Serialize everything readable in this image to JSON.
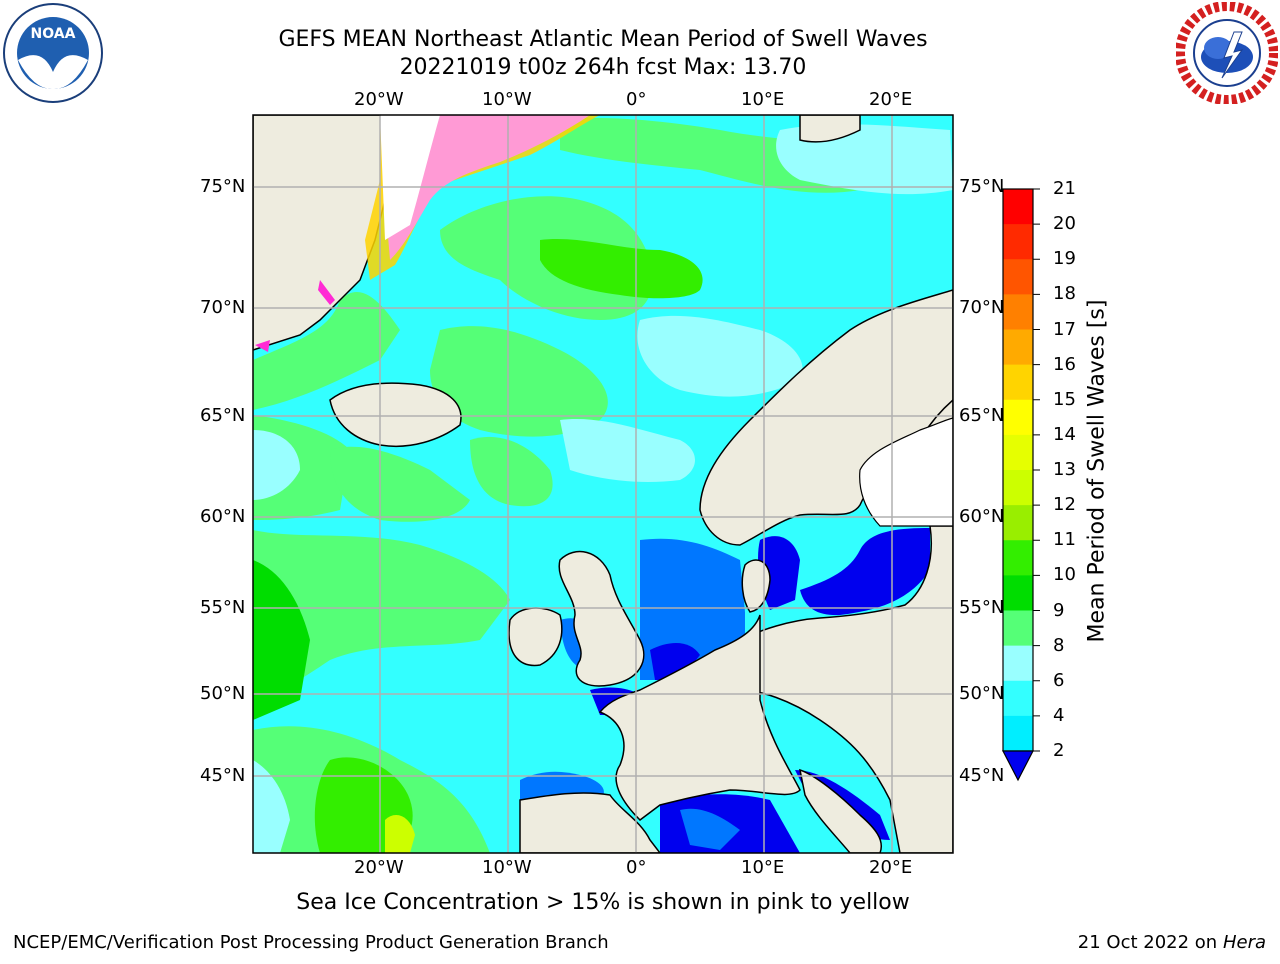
{
  "title": {
    "line1": "GEFS MEAN Northeast Atlantic Mean Period of Swell Waves",
    "line2": "20221019 t00z 264h fcst   Max: 13.70"
  },
  "map": {
    "lon_labels": [
      "20°W",
      "10°W",
      "0°",
      "10°E",
      "20°E"
    ],
    "lat_labels": [
      "75°N",
      "70°N",
      "65°N",
      "60°N",
      "55°N",
      "50°N",
      "45°N"
    ],
    "land_color": "#eeecdf",
    "ocean_base_color": "#33ffff"
  },
  "colorbar": {
    "title": "Mean Period of Swell Waves [s]",
    "tick_labels": [
      "21",
      "20",
      "19",
      "18",
      "17",
      "16",
      "15",
      "14",
      "13",
      "12",
      "11",
      "10",
      "9",
      "8",
      "6",
      "4",
      "2"
    ],
    "colors": [
      "#ff0000",
      "#ff2a00",
      "#ff5500",
      "#ff8000",
      "#ffaa00",
      "#ffd400",
      "#ffff00",
      "#e6ff00",
      "#ccff00",
      "#99ee00",
      "#33ee00",
      "#00dd00",
      "#55ff77",
      "#99ffff",
      "#33ffff",
      "#00eeff",
      "#0077ff",
      "#0000ee"
    ]
  },
  "note": "Sea Ice Concentration > 15% is shown in pink to yellow",
  "footer": {
    "left": "NCEP/EMC/Verification Post Processing Product Generation Branch",
    "date": "21 Oct 2022 on ",
    "host": "Hera"
  },
  "logos": {
    "noaa_text": "NOAA",
    "noaa_ring": "NATIONAL OCEANIC AND ATMOSPHERIC ADMINISTRATION · U.S. DEPARTMENT OF COMMERCE",
    "nws_ring": "NATIONAL WEATHER SERVICE"
  }
}
